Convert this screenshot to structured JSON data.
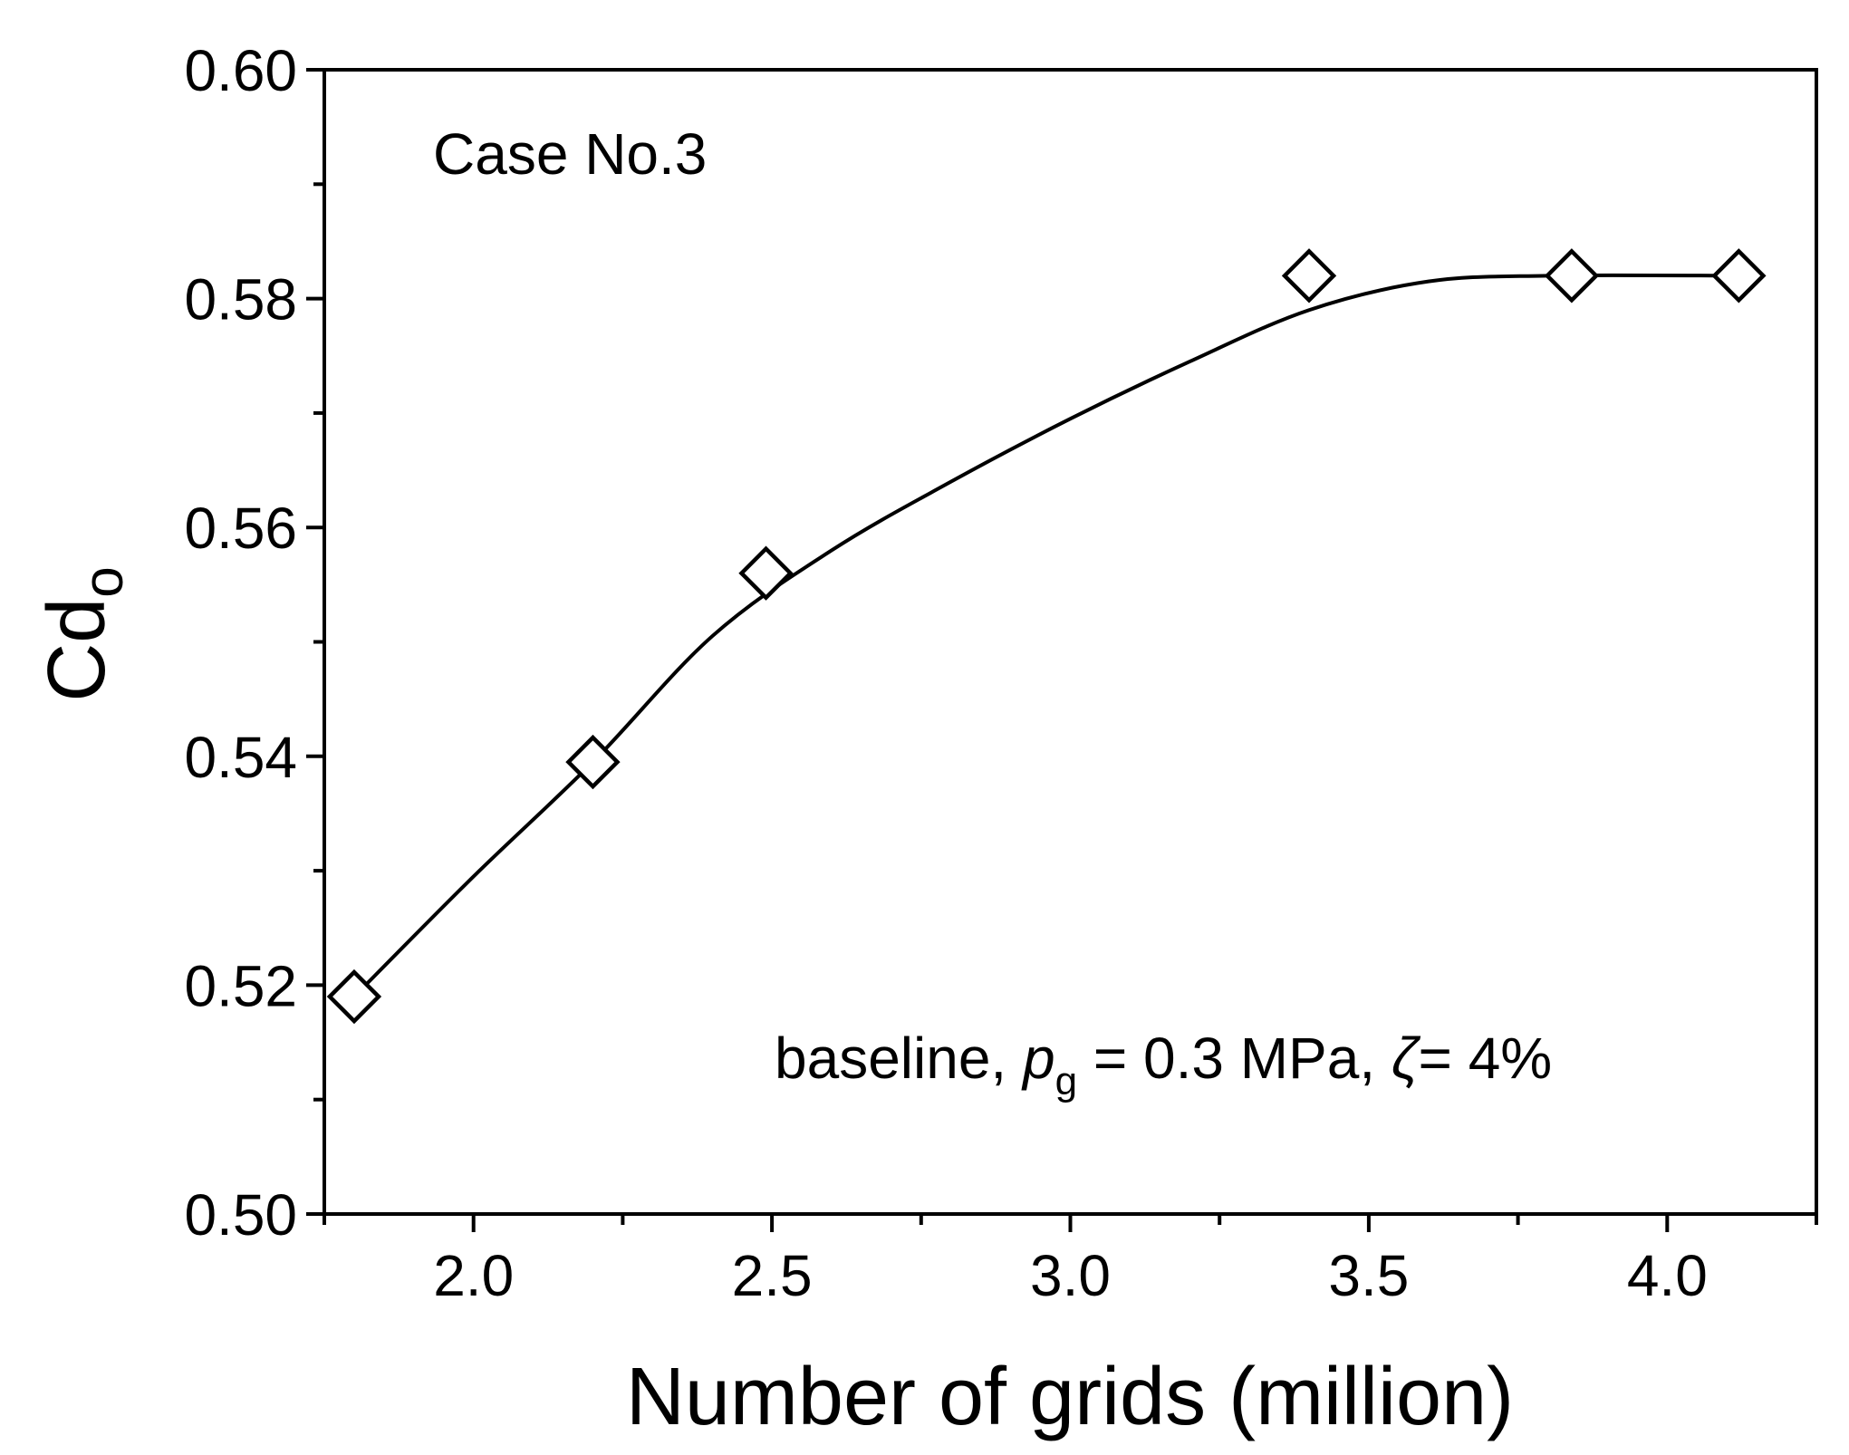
{
  "chart_data": {
    "type": "scatter",
    "x": [
      1.8,
      2.2,
      2.49,
      3.4,
      3.84,
      4.12
    ],
    "y": [
      0.519,
      0.5395,
      0.556,
      0.582,
      0.582,
      0.582
    ],
    "fit_curve": {
      "x": [
        1.8,
        2.0,
        2.2,
        2.4,
        2.6,
        2.8,
        3.0,
        3.2,
        3.4,
        3.6,
        3.8,
        4.12
      ],
      "y": [
        0.519,
        0.5295,
        0.5395,
        0.5505,
        0.558,
        0.564,
        0.5695,
        0.5745,
        0.579,
        0.5815,
        0.582,
        0.582
      ]
    },
    "xlabel": "Number of grids (million)",
    "ylabel": "Cd",
    "ylabel_sub": "o",
    "xlim": [
      1.75,
      4.25
    ],
    "ylim": [
      0.5,
      0.6
    ],
    "x_ticks": [
      "2.0",
      "2.5",
      "3.0",
      "3.5",
      "4.0"
    ],
    "x_tick_values": [
      2.0,
      2.5,
      3.0,
      3.5,
      4.0
    ],
    "y_ticks": [
      "0.50",
      "0.52",
      "0.54",
      "0.56",
      "0.58",
      "0.60"
    ],
    "y_tick_values": [
      0.5,
      0.52,
      0.54,
      0.56,
      0.58,
      0.6
    ],
    "marker": "open-diamond",
    "grid": false,
    "annotations": {
      "case": "Case No.3",
      "cond_prefix": "baseline, ",
      "cond_p": "p",
      "cond_p_sub": "g",
      "cond_mid": " = 0.3 MPa, ",
      "cond_zeta": "ζ",
      "cond_end": "= 4%"
    }
  }
}
